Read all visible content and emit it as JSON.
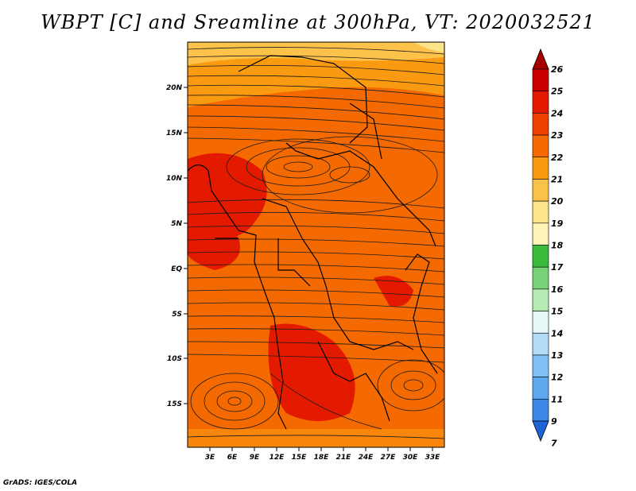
{
  "title": "WBPT [C] and Sreamline at 300hPa, VT: 2020032521",
  "credit": "GrADS: IGES/COLA",
  "map": {
    "lon_labels": [
      "3E",
      "6E",
      "9E",
      "12E",
      "15E",
      "18E",
      "21E",
      "24E",
      "27E",
      "30E",
      "33E"
    ],
    "lat_labels": [
      "20N",
      "15N",
      "10N",
      "5N",
      "EQ",
      "5S",
      "10S",
      "15S"
    ]
  },
  "colorbar": {
    "levels": [
      "26",
      "25",
      "24",
      "23",
      "22",
      "21",
      "20",
      "19",
      "18",
      "17",
      "16",
      "15",
      "14",
      "13",
      "12",
      "11",
      "9",
      "7"
    ],
    "colors": [
      "#a50000",
      "#c80000",
      "#e41a00",
      "#f04000",
      "#f56a00",
      "#fa9a10",
      "#fcc24a",
      "#fde38a",
      "#fff3b8",
      "#3cba3c",
      "#78d278",
      "#b4ecb4",
      "#e6f8f8",
      "#b4dcf8",
      "#82c0f8",
      "#5ea8f0",
      "#3c88e8",
      "#1e64d8"
    ]
  }
}
